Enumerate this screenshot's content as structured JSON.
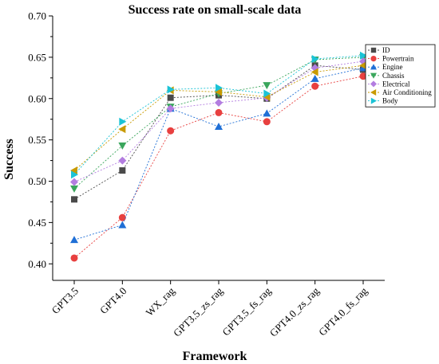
{
  "chart_data": {
    "type": "line",
    "title": "Success rate on small-scale data",
    "xlabel": "Framework",
    "ylabel": "Success",
    "categories": [
      "GPT3.5",
      "GPT4.0",
      "WX_rag",
      "GPT3.5_zs_rag",
      "GPT3.5_fs_rag",
      "GPT4.0_zs_rag",
      "GPT4.0_fs_rag"
    ],
    "ylim": [
      0.38,
      0.7
    ],
    "yticks": [
      "0.40",
      "0.45",
      "0.50",
      "0.55",
      "0.60",
      "0.65",
      "0.70"
    ],
    "legend_position": "top-right",
    "grid": false,
    "line_style": "dashed",
    "series": [
      {
        "name": "ID",
        "color": "#4a4a4a",
        "marker": "square",
        "values": [
          0.478,
          0.513,
          0.601,
          0.604,
          0.6,
          0.64,
          0.635
        ]
      },
      {
        "name": "Powertrain",
        "color": "#e8403f",
        "marker": "circle",
        "values": [
          0.407,
          0.456,
          0.561,
          0.583,
          0.572,
          0.615,
          0.627
        ]
      },
      {
        "name": "Engine",
        "color": "#1f6fd6",
        "marker": "triangle-up",
        "values": [
          0.429,
          0.447,
          0.588,
          0.566,
          0.582,
          0.624,
          0.637
        ]
      },
      {
        "name": "Chassis",
        "color": "#3aa65c",
        "marker": "triangle-down",
        "values": [
          0.491,
          0.543,
          0.59,
          0.606,
          0.616,
          0.647,
          0.65
        ]
      },
      {
        "name": "Electrical",
        "color": "#b37de0",
        "marker": "diamond",
        "values": [
          0.499,
          0.525,
          0.588,
          0.595,
          0.601,
          0.637,
          0.645
        ]
      },
      {
        "name": "Air Conditioning",
        "color": "#c89a00",
        "marker": "triangle-left",
        "values": [
          0.513,
          0.563,
          0.61,
          0.608,
          0.602,
          0.632,
          0.64
        ]
      },
      {
        "name": "Body",
        "color": "#1bc3d6",
        "marker": "triangle-right",
        "values": [
          0.508,
          0.572,
          0.611,
          0.613,
          0.606,
          0.648,
          0.652
        ]
      }
    ]
  }
}
